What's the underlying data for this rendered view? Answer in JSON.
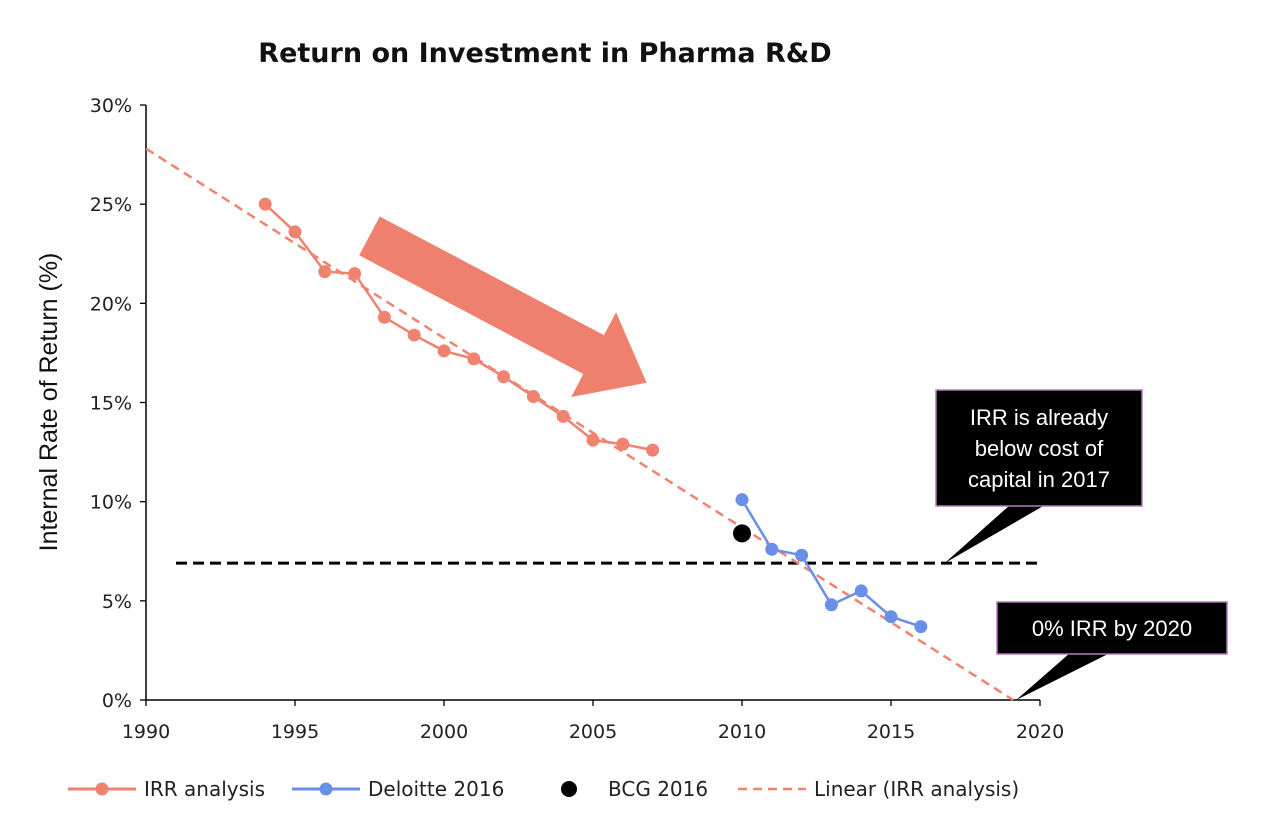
{
  "chart_data": {
    "type": "line",
    "title": "Return on Investment in Pharma R&D",
    "xlabel": "",
    "ylabel": "Internal Rate of Return (%)",
    "xlim": [
      1990,
      2020
    ],
    "ylim": [
      0,
      30
    ],
    "x_ticks": [
      "1990",
      "1995",
      "2000",
      "2005",
      "2010",
      "2015",
      "2020"
    ],
    "y_ticks": [
      "0%",
      "5%",
      "10%",
      "15%",
      "20%",
      "25%",
      "30%"
    ],
    "grid": false,
    "series": [
      {
        "name": "IRR analysis",
        "kind": "line-markers",
        "color": "#f0836f",
        "x": [
          1994,
          1995,
          1996,
          1997,
          1998,
          1999,
          2000,
          2001,
          2002,
          2003,
          2004,
          2005,
          2006,
          2007
        ],
        "y": [
          25.0,
          23.6,
          21.6,
          21.5,
          19.3,
          18.4,
          17.6,
          17.2,
          16.3,
          15.3,
          14.3,
          13.1,
          12.9,
          12.6
        ]
      },
      {
        "name": "Deloitte 2016",
        "kind": "line-markers",
        "color": "#6a8fe8",
        "x": [
          2010,
          2011,
          2012,
          2013,
          2014,
          2015,
          2016
        ],
        "y": [
          10.1,
          7.6,
          7.3,
          4.8,
          5.5,
          4.2,
          3.7
        ]
      },
      {
        "name": "BCG 2016",
        "kind": "marker",
        "color": "#000000",
        "x": [
          2010
        ],
        "y": [
          8.4
        ]
      },
      {
        "name": "Linear (IRR analysis)",
        "kind": "trendline",
        "color": "#f0836f",
        "x": [
          1990,
          2019.1
        ],
        "y": [
          27.8,
          0
        ]
      }
    ],
    "reference_line": {
      "label": "cost of capital",
      "y": 6.9,
      "x_range": [
        1990,
        2020
      ],
      "color": "#000000"
    },
    "annotations": [
      {
        "name": "downtrend-arrow",
        "from": [
          1997.5,
          23.4
        ],
        "to": [
          2006.8,
          16.0
        ],
        "color": "#f0806e"
      },
      {
        "name": "callout-cost-of-capital",
        "lines": [
          "IRR is already",
          "below cost of",
          "capital in 2017"
        ],
        "points_to": [
          2016.8,
          6.9
        ]
      },
      {
        "name": "callout-zero-irr",
        "lines": [
          "0% IRR by 2020"
        ],
        "points_to": [
          2019.2,
          0
        ]
      }
    ],
    "legend": {
      "position": "bottom",
      "entries": [
        "IRR analysis",
        "Deloitte 2016",
        "BCG 2016",
        "Linear (IRR analysis)"
      ]
    }
  }
}
